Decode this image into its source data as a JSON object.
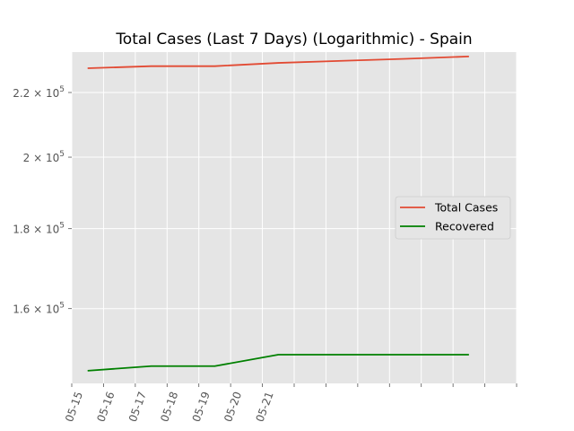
{
  "chart_data": {
    "type": "line",
    "title": "Total Cases (Last 7 Days) (Logarithmic) - Spain",
    "xlabel": "",
    "ylabel": "",
    "y_scale": "log",
    "grid": true,
    "background": "#e5e5e5",
    "legend_position": "center-right",
    "x_ticks": [
      "05-15",
      "05-16",
      "05-17",
      "05-18",
      "05-19",
      "05-20",
      "05-21"
    ],
    "x_range": [
      "2020-05-15",
      "2020-05-29"
    ],
    "x": [
      "2020-05-15T12:00",
      "2020-05-17T12:00",
      "2020-05-19T12:00",
      "2020-05-21T12:00",
      "2020-05-23T12:00",
      "2020-05-25T12:00",
      "2020-05-27T12:00"
    ],
    "y_ticks": [
      {
        "value": 160000,
        "mantissa": "1.6",
        "exp": "5"
      },
      {
        "value": 180000,
        "mantissa": "1.8",
        "exp": "5"
      },
      {
        "value": 200000,
        "mantissa": "2",
        "exp": "5"
      },
      {
        "value": 220000,
        "mantissa": "2.2",
        "exp": "5"
      }
    ],
    "ylim": [
      143300,
      233500
    ],
    "series": [
      {
        "name": "Total Cases",
        "color": "#e24a33",
        "values": [
          228000,
          228700,
          228700,
          229800,
          230500,
          231200,
          232000
        ]
      },
      {
        "name": "Recovered",
        "color": "#008000",
        "values": [
          146000,
          147000,
          147000,
          149500,
          149500,
          149500,
          149500
        ]
      }
    ]
  }
}
